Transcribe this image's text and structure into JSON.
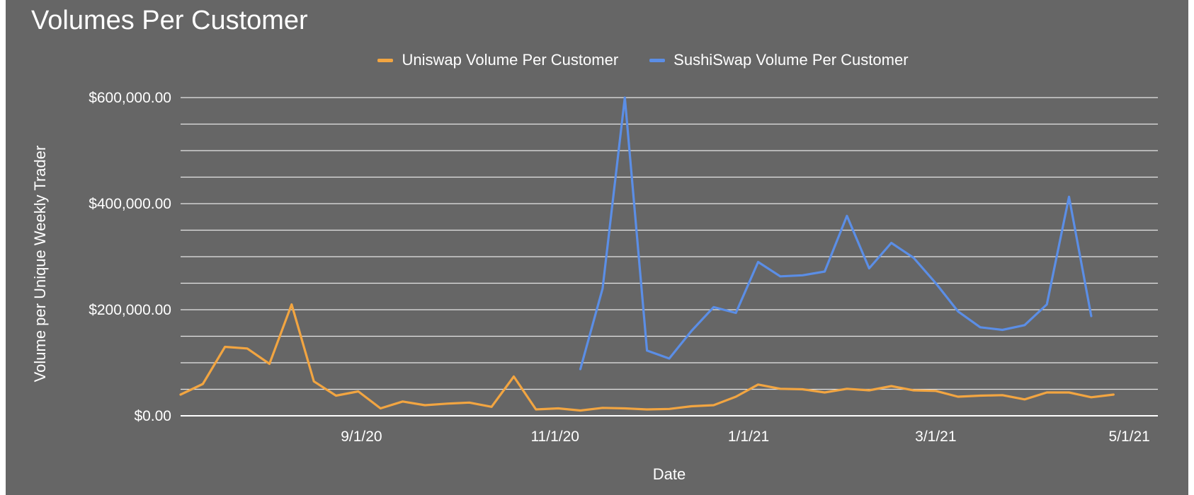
{
  "chart_data": {
    "type": "line",
    "title": "Volumes Per Customer",
    "xlabel": "Date",
    "ylabel": "Volume per Unique Weekly Trader",
    "ylim": [
      0,
      600000
    ],
    "y_ticks": [
      "$0.00",
      "$200,000.00",
      "$400,000.00",
      "$600,000.00"
    ],
    "y_tick_values": [
      0,
      200000,
      400000,
      600000
    ],
    "x_tick_labels": [
      "9/1/20",
      "11/1/20",
      "1/1/21",
      "3/1/21",
      "5/1/21"
    ],
    "x_tick_dates": [
      "2020-09-01",
      "2020-11-01",
      "2021-01-01",
      "2021-03-01",
      "2021-05-01"
    ],
    "x_range": [
      "2020-07-06",
      "2021-05-10"
    ],
    "grid": true,
    "legend_position": "top-center",
    "series": [
      {
        "name": "Uniswap Volume Per Customer",
        "color": "#f2a541",
        "x": [
          "2020-07-06",
          "2020-07-13",
          "2020-07-20",
          "2020-07-27",
          "2020-08-03",
          "2020-08-10",
          "2020-08-17",
          "2020-08-24",
          "2020-08-31",
          "2020-09-07",
          "2020-09-14",
          "2020-09-21",
          "2020-09-28",
          "2020-10-05",
          "2020-10-12",
          "2020-10-19",
          "2020-10-26",
          "2020-11-02",
          "2020-11-09",
          "2020-11-16",
          "2020-11-23",
          "2020-11-30",
          "2020-12-07",
          "2020-12-14",
          "2020-12-21",
          "2020-12-28",
          "2021-01-04",
          "2021-01-11",
          "2021-01-18",
          "2021-01-25",
          "2021-02-01",
          "2021-02-08",
          "2021-02-15",
          "2021-02-22",
          "2021-03-01",
          "2021-03-08",
          "2021-03-15",
          "2021-03-22",
          "2021-03-29",
          "2021-04-05",
          "2021-04-12",
          "2021-04-19",
          "2021-04-26",
          "2021-05-03",
          "2021-05-10"
        ],
        "values": [
          40000,
          60000,
          130000,
          127000,
          98000,
          210000,
          65000,
          38000,
          46000,
          14000,
          27000,
          20000,
          23000,
          25000,
          17000,
          74000,
          12000,
          14000,
          10000,
          15000,
          14000,
          12000,
          13000,
          18000,
          20000,
          36000,
          59000,
          51000,
          50000,
          44000,
          51000,
          48000,
          56000,
          48000,
          47000,
          36000,
          38000,
          39000,
          31000,
          44000,
          44000,
          35000,
          40000,
          null,
          null
        ]
      },
      {
        "name": "SushiSwap Volume Per Customer",
        "color": "#5b8ee6",
        "x": [
          "2020-07-06",
          "2020-07-13",
          "2020-07-20",
          "2020-07-27",
          "2020-08-03",
          "2020-08-10",
          "2020-08-17",
          "2020-08-24",
          "2020-08-31",
          "2020-09-07",
          "2020-09-14",
          "2020-09-21",
          "2020-09-28",
          "2020-10-05",
          "2020-10-12",
          "2020-10-19",
          "2020-10-26",
          "2020-11-02",
          "2020-11-09",
          "2020-11-16",
          "2020-11-23",
          "2020-11-30",
          "2020-12-07",
          "2020-12-14",
          "2020-12-21",
          "2020-12-28",
          "2021-01-04",
          "2021-01-11",
          "2021-01-18",
          "2021-01-25",
          "2021-02-01",
          "2021-02-08",
          "2021-02-15",
          "2021-02-22",
          "2021-03-01",
          "2021-03-08",
          "2021-03-15",
          "2021-03-22",
          "2021-03-29",
          "2021-04-05",
          "2021-04-12",
          "2021-04-19",
          "2021-04-26",
          "2021-05-03",
          "2021-05-10"
        ],
        "values": [
          null,
          null,
          null,
          null,
          null,
          null,
          null,
          null,
          null,
          null,
          null,
          null,
          null,
          null,
          null,
          null,
          null,
          null,
          88000,
          240000,
          600000,
          123000,
          108000,
          160000,
          205000,
          194000,
          290000,
          263000,
          265000,
          272000,
          377000,
          278000,
          326000,
          298000,
          250000,
          197000,
          167000,
          162000,
          171000,
          210000,
          413000,
          188000,
          null,
          null,
          null
        ]
      }
    ]
  }
}
